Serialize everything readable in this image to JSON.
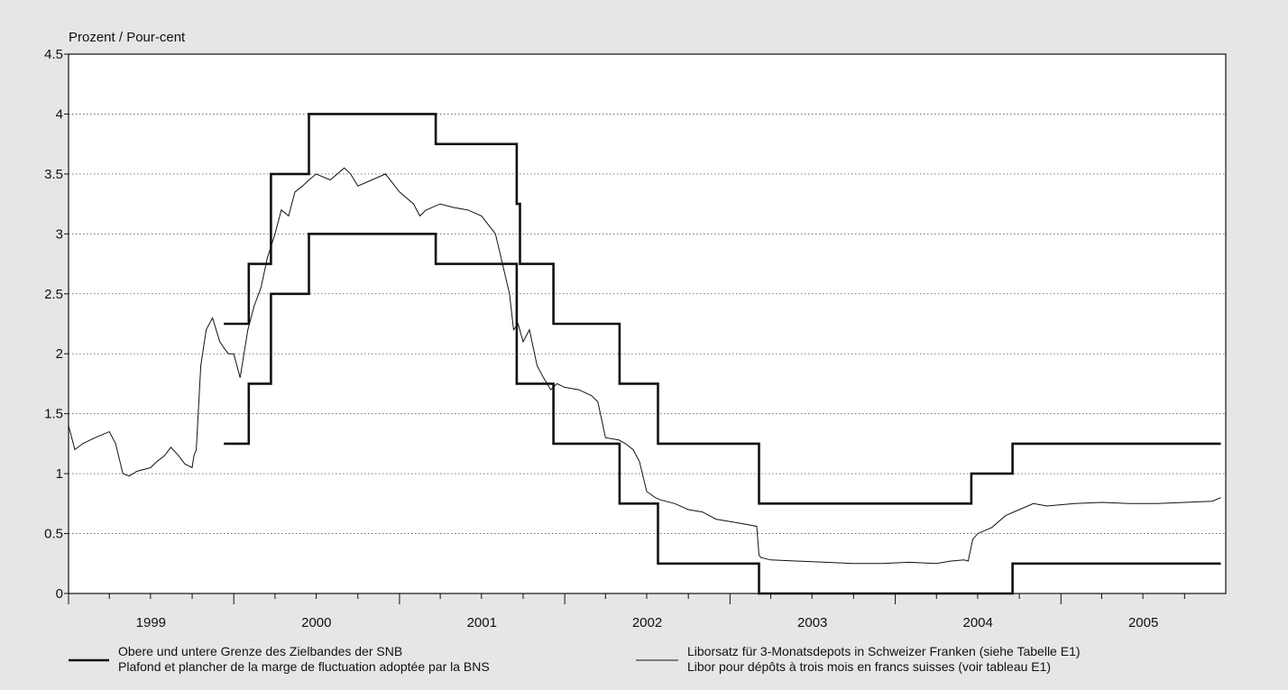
{
  "chart_data": {
    "type": "line",
    "ylabel": "Prozent / Pour-cent",
    "ylim": [
      0,
      4.5
    ],
    "xlim": [
      "1999-01-01",
      "2005-12-31"
    ],
    "y_ticks": [
      "0",
      "0.5",
      "1",
      "1.5",
      "2",
      "2.5",
      "3",
      "3.5",
      "4",
      "4.5"
    ],
    "x_tick_labels": [
      "1999",
      "2000",
      "2001",
      "2002",
      "2003",
      "2004",
      "2005"
    ],
    "grid": "horizontal dotted",
    "legend_placement": "bottom",
    "colors": {
      "background": "#e6e6e6",
      "plot": "#ffffff",
      "lines": "#111111"
    },
    "series": [
      {
        "name": "Obere und untere Grenze des Zielbandes der SNB",
        "name_fr": "Plafond et plancher de la marge de fluctuation adoptée par la BNS",
        "style": "thick",
        "upper": {
          "x": [
            "1999-12-10",
            "2000-02-03",
            "2000-02-03",
            "2000-03-23",
            "2000-03-23",
            "2000-06-15",
            "2000-06-15",
            "2001-03-22",
            "2001-03-22",
            "2001-09-17",
            "2001-09-17",
            "2001-09-24",
            "2001-09-24",
            "2001-12-07",
            "2001-12-07",
            "2002-05-02",
            "2002-05-02",
            "2002-07-26",
            "2002-07-26",
            "2003-03-06",
            "2003-03-06",
            "2004-06-17",
            "2004-06-17",
            "2004-09-16",
            "2004-09-16",
            "2005-12-20"
          ],
          "y": [
            2.25,
            2.25,
            2.75,
            2.75,
            3.5,
            3.5,
            4.0,
            4.0,
            3.75,
            3.75,
            3.25,
            3.25,
            2.75,
            2.75,
            2.25,
            2.25,
            1.75,
            1.75,
            1.25,
            1.25,
            0.75,
            0.75,
            1.0,
            1.0,
            1.25,
            1.25
          ]
        },
        "lower": {
          "x": [
            "1999-12-10",
            "2000-02-03",
            "2000-02-03",
            "2000-03-23",
            "2000-03-23",
            "2000-06-15",
            "2000-06-15",
            "2001-03-22",
            "2001-03-22",
            "2001-09-17",
            "2001-09-17",
            "2001-12-07",
            "2001-12-07",
            "2002-05-02",
            "2002-05-02",
            "2002-07-26",
            "2002-07-26",
            "2003-03-06",
            "2003-03-06",
            "2004-09-16",
            "2004-09-16",
            "2005-12-20"
          ],
          "y": [
            1.25,
            1.25,
            1.75,
            1.75,
            2.5,
            2.5,
            3.0,
            3.0,
            2.75,
            2.75,
            1.75,
            1.75,
            1.25,
            1.25,
            0.75,
            0.75,
            0.25,
            0.25,
            0.0,
            0.0,
            0.25,
            0.25
          ]
        }
      },
      {
        "name": "Liborsatz für 3-Monatsdepots in Schweizer Franken (siehe Tabelle E1)",
        "name_fr": "Libor pour dépôts à trois mois en francs suisses (voir tableau E1)",
        "style": "thin",
        "x": [
          "1999-01-01",
          "1999-01-15",
          "1999-02-01",
          "1999-03-01",
          "1999-04-01",
          "1999-04-15",
          "1999-05-01",
          "1999-05-15",
          "1999-06-01",
          "1999-07-01",
          "1999-07-15",
          "1999-08-01",
          "1999-08-15",
          "1999-09-01",
          "1999-09-15",
          "1999-10-01",
          "1999-10-05",
          "1999-10-10",
          "1999-10-20",
          "1999-11-01",
          "1999-11-15",
          "1999-12-01",
          "1999-12-10",
          "1999-12-20",
          "2000-01-01",
          "2000-01-15",
          "2000-02-01",
          "2000-02-15",
          "2000-03-01",
          "2000-03-15",
          "2000-04-01",
          "2000-04-15",
          "2000-05-01",
          "2000-05-15",
          "2000-06-01",
          "2000-06-15",
          "2000-07-01",
          "2000-08-01",
          "2000-09-01",
          "2000-09-15",
          "2000-10-01",
          "2000-11-01",
          "2000-12-01",
          "2001-01-01",
          "2001-02-01",
          "2001-02-15",
          "2001-03-01",
          "2001-04-01",
          "2001-05-01",
          "2001-06-01",
          "2001-07-01",
          "2001-08-01",
          "2001-09-01",
          "2001-09-10",
          "2001-09-20",
          "2001-10-01",
          "2001-10-15",
          "2001-11-01",
          "2001-11-15",
          "2001-12-01",
          "2001-12-15",
          "2002-01-01",
          "2002-02-01",
          "2002-03-01",
          "2002-03-15",
          "2002-04-01",
          "2002-05-01",
          "2002-05-15",
          "2002-06-01",
          "2002-06-15",
          "2002-07-01",
          "2002-07-20",
          "2002-08-01",
          "2002-09-01",
          "2002-10-01",
          "2002-11-01",
          "2002-12-01",
          "2003-01-01",
          "2003-02-01",
          "2003-03-01",
          "2003-03-06",
          "2003-03-10",
          "2003-04-01",
          "2003-06-01",
          "2003-08-01",
          "2003-10-01",
          "2003-12-01",
          "2004-02-01",
          "2004-04-01",
          "2004-05-01",
          "2004-06-01",
          "2004-06-10",
          "2004-06-20",
          "2004-07-01",
          "2004-08-01",
          "2004-09-01",
          "2004-10-01",
          "2004-11-01",
          "2004-12-01",
          "2005-02-01",
          "2005-04-01",
          "2005-06-01",
          "2005-08-01",
          "2005-10-01",
          "2005-12-01",
          "2005-12-20"
        ],
        "y": [
          1.4,
          1.2,
          1.25,
          1.3,
          1.35,
          1.25,
          1.0,
          0.98,
          1.02,
          1.05,
          1.1,
          1.15,
          1.22,
          1.15,
          1.08,
          1.05,
          1.15,
          1.2,
          1.9,
          2.2,
          2.3,
          2.1,
          2.05,
          2.0,
          2.0,
          1.8,
          2.2,
          2.4,
          2.55,
          2.8,
          3.0,
          3.2,
          3.15,
          3.35,
          3.4,
          3.45,
          3.5,
          3.45,
          3.55,
          3.5,
          3.4,
          3.45,
          3.5,
          3.35,
          3.25,
          3.15,
          3.2,
          3.25,
          3.22,
          3.2,
          3.15,
          3.0,
          2.5,
          2.2,
          2.25,
          2.1,
          2.2,
          1.9,
          1.8,
          1.7,
          1.75,
          1.72,
          1.7,
          1.65,
          1.6,
          1.3,
          1.28,
          1.25,
          1.2,
          1.1,
          0.85,
          0.8,
          0.78,
          0.75,
          0.7,
          0.68,
          0.62,
          0.6,
          0.58,
          0.56,
          0.32,
          0.3,
          0.28,
          0.27,
          0.26,
          0.25,
          0.25,
          0.26,
          0.25,
          0.27,
          0.28,
          0.27,
          0.45,
          0.5,
          0.55,
          0.65,
          0.7,
          0.75,
          0.73,
          0.75,
          0.76,
          0.75,
          0.75,
          0.76,
          0.77,
          0.8
        ]
      }
    ]
  }
}
